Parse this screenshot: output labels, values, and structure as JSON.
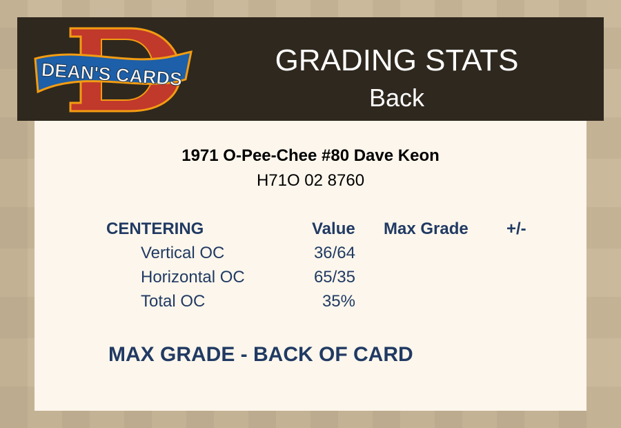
{
  "header": {
    "logo_text": "DEAN'S CARDS",
    "title": "GRADING STATS",
    "subtitle": "Back"
  },
  "card": {
    "name": "1971 O-Pee-Chee #80 Dave Keon",
    "cert": "H71O 02 8760"
  },
  "table": {
    "section": "CENTERING",
    "columns": [
      "Value",
      "Max Grade",
      "+/-"
    ],
    "rows": [
      {
        "label": "Vertical OC",
        "value": "36/64"
      },
      {
        "label": "Horizontal OC",
        "value": "65/35"
      },
      {
        "label": "Total OC",
        "value": "35%"
      }
    ]
  },
  "footer": {
    "max_grade_label": "MAX GRADE - BACK OF CARD"
  },
  "colors": {
    "header_bg": "#2f281e",
    "panel_bg": "#fcf6ec",
    "text_navy": "#213a63",
    "page_bg": "#c8b697"
  }
}
